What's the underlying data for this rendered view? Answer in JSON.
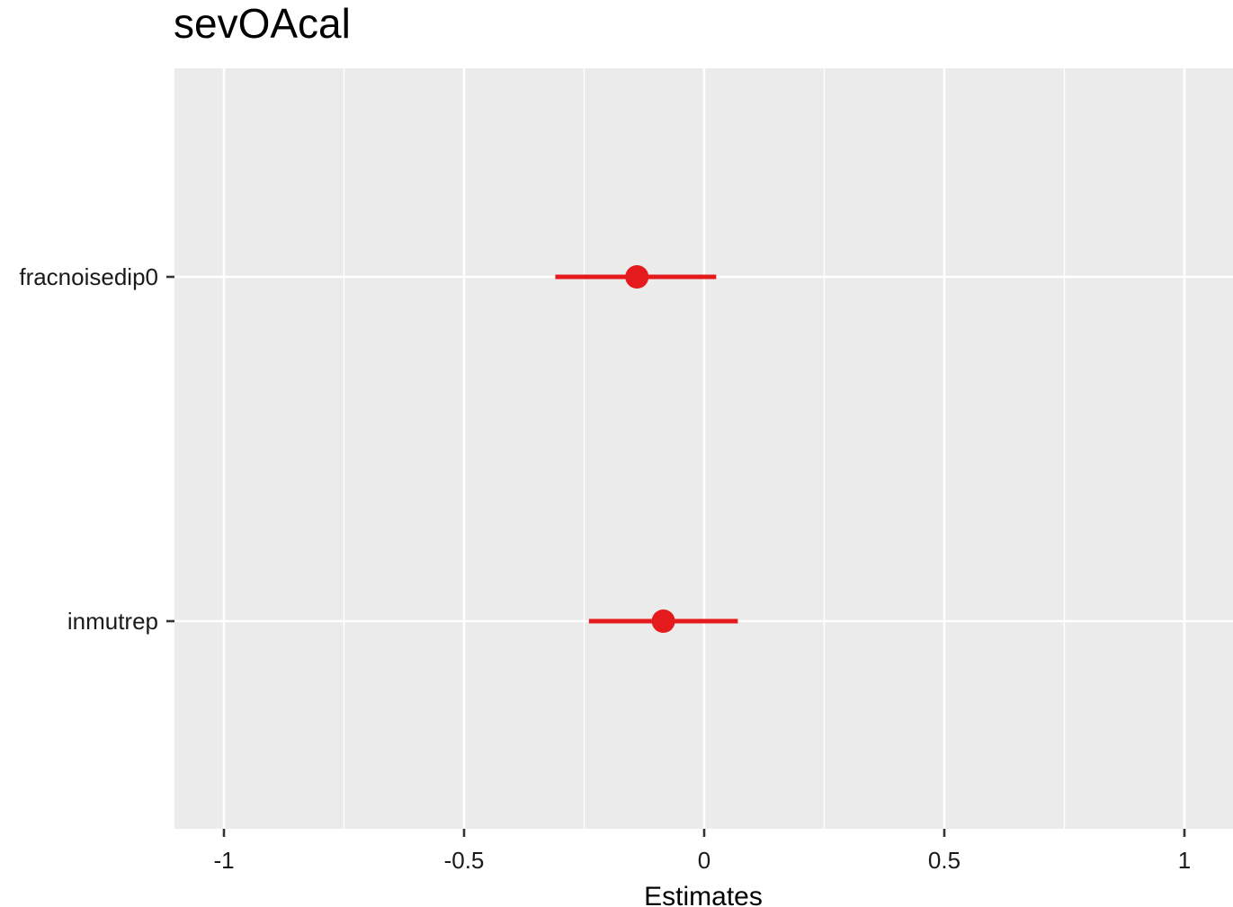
{
  "chart_data": {
    "type": "scatter",
    "title": "sevOAcal",
    "xlabel": "Estimates",
    "ylabel": "",
    "xlim": [
      -1.1,
      1.1
    ],
    "x_ticks": [
      -1,
      -0.5,
      0,
      0.5,
      1
    ],
    "x_tick_labels": [
      "-1",
      "-0.5",
      "0",
      "0.5",
      "1"
    ],
    "categories": [
      "fracnoisedip0",
      "inmutrep"
    ],
    "series": [
      {
        "estimates": [
          -0.14,
          -0.085
        ],
        "ci_low": [
          -0.31,
          -0.24
        ],
        "ci_high": [
          0.025,
          0.07
        ]
      }
    ],
    "grid": true,
    "legend": "none",
    "colors": {
      "panel_background": "#EBEBEB",
      "grid": "#FFFFFF",
      "point": "#E41A1C",
      "tick": "#333333"
    }
  }
}
